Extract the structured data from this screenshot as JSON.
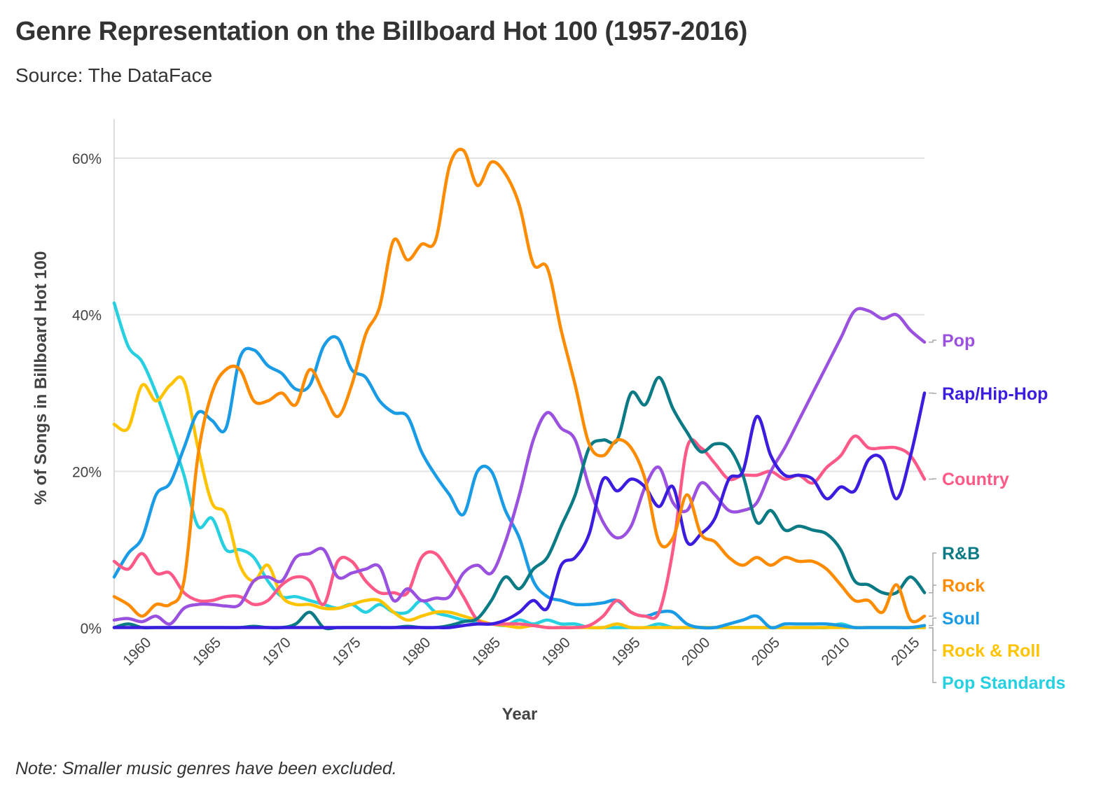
{
  "header": {
    "title": "Genre Representation on the Billboard Hot 100 (1957-2016)",
    "subtitle": "Source: The DataFace"
  },
  "footer": {
    "note": "Note: Smaller music genres have been excluded."
  },
  "chart_data": {
    "type": "line",
    "title": "Genre Representation on the Billboard Hot 100 (1957-2016)",
    "subtitle": "Source: The DataFace",
    "xlabel": "Year",
    "ylabel": "% of Songs in Billboard Hot 100",
    "xlim": [
      1958,
      2016
    ],
    "ylim": [
      0,
      65
    ],
    "x_ticks": [
      1960,
      1965,
      1970,
      1975,
      1980,
      1985,
      1990,
      1995,
      2000,
      2005,
      2010,
      2015
    ],
    "x_tick_labels": [
      "1960",
      "1965",
      "1970",
      "1975",
      "1980",
      "1985",
      "1990",
      "1995",
      "2000",
      "2005",
      "2010",
      "2015"
    ],
    "y_ticks": [
      0,
      20,
      40,
      60
    ],
    "y_tick_labels": [
      "0%",
      "20%",
      "40%",
      "60%"
    ],
    "grid": "horizontal",
    "legend": "direct labels at right end of lines",
    "x": [
      1958,
      1959,
      1960,
      1961,
      1962,
      1963,
      1964,
      1965,
      1966,
      1967,
      1968,
      1969,
      1970,
      1971,
      1972,
      1973,
      1974,
      1975,
      1976,
      1977,
      1978,
      1979,
      1980,
      1981,
      1982,
      1983,
      1984,
      1985,
      1986,
      1987,
      1988,
      1989,
      1990,
      1991,
      1992,
      1993,
      1994,
      1995,
      1996,
      1997,
      1998,
      1999,
      2000,
      2001,
      2002,
      2003,
      2004,
      2005,
      2006,
      2007,
      2008,
      2009,
      2010,
      2011,
      2012,
      2013,
      2014,
      2015,
      2016
    ],
    "series": [
      {
        "name": "Pop",
        "color": "#9b51e0",
        "values": [
          1,
          1.2,
          0.8,
          1.5,
          0.5,
          2.5,
          3,
          3,
          2.8,
          3,
          6,
          6.5,
          6,
          9,
          9.5,
          10,
          6.5,
          7,
          7.5,
          7.8,
          3.5,
          5,
          3.5,
          3.8,
          4,
          7,
          8,
          7,
          11,
          17,
          24,
          27.5,
          25.5,
          24,
          18,
          13.5,
          11.5,
          13,
          18,
          20.5,
          16,
          15,
          18.5,
          17,
          15,
          15,
          16,
          20,
          23,
          26.5,
          30,
          33.5,
          37,
          40.5,
          40.5,
          39.5,
          40,
          38,
          36.5
        ]
      },
      {
        "name": "Rap/Hip-Hop",
        "color": "#3b1de0",
        "values": [
          0,
          0,
          0,
          0,
          0,
          0,
          0,
          0,
          0,
          0,
          0,
          0,
          0,
          0,
          0,
          0,
          0,
          0,
          0,
          0,
          0,
          0,
          0,
          0,
          0,
          0.3,
          0.5,
          0.5,
          1,
          2,
          3.5,
          2.5,
          8,
          9,
          12,
          19,
          17.5,
          19,
          18,
          15.5,
          18,
          11,
          12,
          14,
          19,
          20,
          27,
          22,
          19.5,
          19.5,
          19,
          16.5,
          18,
          17.5,
          21.5,
          21.5,
          16.5,
          22,
          30
        ]
      },
      {
        "name": "Country",
        "color": "#ff5a87",
        "values": [
          8.5,
          7.5,
          9.5,
          7,
          7,
          4.5,
          3.5,
          3.5,
          4,
          4,
          3,
          3.5,
          5.5,
          6.5,
          6,
          3,
          8.5,
          8.5,
          6,
          4.5,
          4.5,
          4.5,
          9,
          9.5,
          7,
          4,
          1,
          0.5,
          0.5,
          0.5,
          0.3,
          0,
          0,
          0,
          0.3,
          1.5,
          3.5,
          2,
          1.5,
          2,
          10,
          23,
          23,
          21,
          19,
          19.5,
          19.5,
          20,
          19,
          19.5,
          18.5,
          20.5,
          22,
          24.5,
          23,
          23,
          23,
          22,
          19
        ]
      },
      {
        "name": "R&B",
        "color": "#0a7a85",
        "values": [
          0,
          0.5,
          0,
          0,
          0,
          0,
          0,
          0,
          0,
          0,
          0.2,
          0,
          0,
          0.5,
          2,
          0,
          0,
          0,
          0,
          0,
          0,
          0.2,
          0,
          0,
          0.3,
          0.8,
          1.2,
          3.5,
          6.5,
          5,
          7.5,
          9,
          13,
          17,
          23,
          24,
          24,
          30,
          28.5,
          32,
          28,
          25,
          22.5,
          23.5,
          23,
          19.5,
          13.5,
          15,
          12.5,
          13,
          12.5,
          12,
          10,
          6,
          5.5,
          4.5,
          4.5,
          6.5,
          4.5
        ]
      },
      {
        "name": "Rock",
        "color": "#ff8c00",
        "values": [
          4,
          3,
          1.5,
          3,
          3,
          6,
          22,
          30,
          33,
          33,
          29,
          29,
          30,
          28.5,
          33,
          30,
          27,
          31,
          37.5,
          41,
          49.5,
          47,
          49,
          49.5,
          59,
          61,
          56.5,
          59.5,
          58,
          54,
          46.5,
          46,
          38,
          31,
          23.5,
          22,
          24,
          23,
          19,
          11,
          11.5,
          17,
          12,
          11,
          9,
          8,
          9,
          8,
          9,
          8.5,
          8.5,
          7.5,
          5.5,
          3.5,
          3.5,
          2,
          5.5,
          1,
          1.5
        ]
      },
      {
        "name": "Soul",
        "color": "#1a9be6",
        "values": [
          6.5,
          9.5,
          11.5,
          17,
          18.5,
          23,
          27.5,
          26.5,
          25.5,
          34.5,
          35.5,
          33.5,
          32.5,
          30.5,
          31,
          36,
          37,
          33,
          32,
          29,
          27.5,
          27,
          22.5,
          19.5,
          17,
          14.5,
          20,
          20,
          15,
          11.5,
          6,
          4,
          3.5,
          3,
          3,
          3.2,
          3.5,
          2,
          1.5,
          2,
          2,
          0.5,
          0,
          0,
          0.5,
          1,
          1.5,
          0,
          0.5,
          0.5,
          0.5,
          0.5,
          0.3,
          0,
          0,
          0,
          0,
          0,
          0.3
        ]
      },
      {
        "name": "Rock & Roll",
        "color": "#ffc300",
        "values": [
          26,
          25.5,
          31,
          29,
          31,
          31.5,
          23,
          16,
          14.5,
          8,
          6,
          8,
          4,
          3,
          3,
          2.5,
          2.5,
          3,
          3.5,
          3.5,
          2,
          1,
          1.5,
          2,
          2,
          1.5,
          1,
          0.5,
          0.3,
          0,
          0.3,
          0,
          0,
          0,
          0,
          0,
          0.5,
          0,
          0,
          0,
          0,
          0,
          0,
          0,
          0,
          0,
          0,
          0,
          0,
          0,
          0,
          0,
          0,
          0,
          0,
          0,
          0,
          0,
          0
        ]
      },
      {
        "name": "Pop Standards",
        "color": "#26d0e0",
        "values": [
          41.5,
          36,
          34,
          30,
          25,
          19.5,
          13,
          14,
          10,
          10,
          9,
          6,
          4,
          4,
          3.5,
          3,
          2.5,
          3,
          2,
          3,
          2,
          2,
          3.5,
          2,
          1.5,
          1,
          0.8,
          0.5,
          0.3,
          1,
          0.5,
          1,
          0.5,
          0.5,
          0,
          0,
          0,
          0,
          0,
          0.5,
          0,
          0,
          0,
          0,
          0,
          0,
          0,
          0,
          0,
          0,
          0,
          0,
          0.5,
          0,
          0,
          0,
          0,
          0,
          0
        ]
      }
    ]
  }
}
